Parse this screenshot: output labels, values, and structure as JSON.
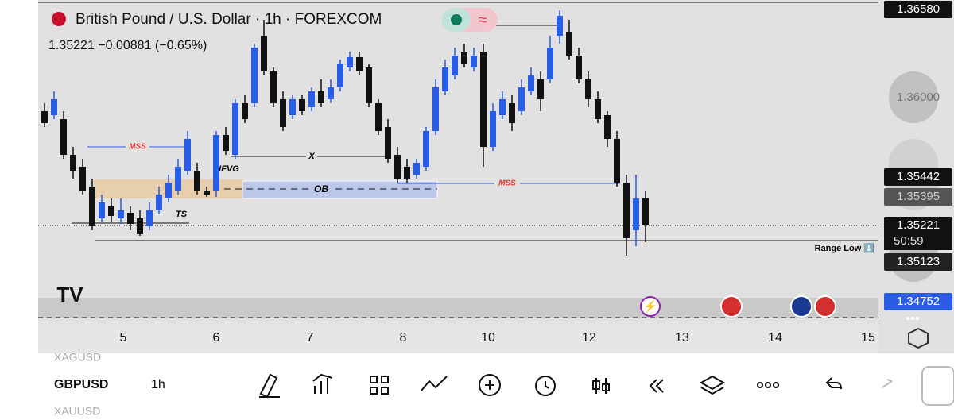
{
  "header": {
    "title": "British Pound / U.S. Dollar · 1h · FOREXCOM",
    "quote": "1.35221 −0.00881 (−0.65%)"
  },
  "chart_data": {
    "type": "candlestick",
    "ylim": [
      1.346,
      1.3664
    ],
    "up_color": "#2b5ce6",
    "down_color": "#111111",
    "xticks": [
      {
        "value": 8.25,
        "label": "5"
      },
      {
        "value": 18,
        "label": "6"
      },
      {
        "value": 27.83,
        "label": "7"
      },
      {
        "value": 37.58,
        "label": "8"
      },
      {
        "value": 46.5,
        "label": "10"
      },
      {
        "value": 57.08,
        "label": "12"
      },
      {
        "value": 66.83,
        "label": "13"
      },
      {
        "value": 76.58,
        "label": "14"
      },
      {
        "value": 86.33,
        "label": "15"
      }
    ],
    "candles": [
      [
        1.3594,
        1.3599,
        1.3584,
        1.35865
      ],
      [
        1.35915,
        1.36065,
        1.3589,
        1.36015
      ],
      [
        1.3589,
        1.3594,
        1.3564,
        1.35665
      ],
      [
        1.35665,
        1.35715,
        1.35515,
        1.35565
      ],
      [
        1.3559,
        1.3564,
        1.35415,
        1.3544
      ],
      [
        1.35465,
        1.35515,
        1.3519,
        1.35215
      ],
      [
        1.35265,
        1.35415,
        1.3524,
        1.35365
      ],
      [
        1.3534,
        1.3539,
        1.3524,
        1.3528
      ],
      [
        1.35265,
        1.3539,
        1.3523,
        1.35315
      ],
      [
        1.353,
        1.3534,
        1.3519,
        1.3523
      ],
      [
        1.35265,
        1.35315,
        1.35155,
        1.35165
      ],
      [
        1.35215,
        1.35365,
        1.3519,
        1.35315
      ],
      [
        1.35315,
        1.35465,
        1.3529,
        1.35415
      ],
      [
        1.3539,
        1.3554,
        1.35365,
        1.3549
      ],
      [
        1.3544,
        1.3564,
        1.35415,
        1.3559
      ],
      [
        1.35565,
        1.35815,
        1.3554,
        1.35765
      ],
      [
        1.35565,
        1.35615,
        1.35415,
        1.3544
      ],
      [
        1.3544,
        1.35465,
        1.354,
        1.35415
      ],
      [
        1.3544,
        1.35815,
        1.354,
        1.3579
      ],
      [
        1.3579,
        1.3584,
        1.35665,
        1.3569
      ],
      [
        1.35665,
        1.36015,
        1.3564,
        1.3599
      ],
      [
        1.3599,
        1.3604,
        1.35865,
        1.3589
      ],
      [
        1.3599,
        1.36365,
        1.35965,
        1.3634
      ],
      [
        1.36415,
        1.36515,
        1.36165,
        1.3619
      ],
      [
        1.3619,
        1.36215,
        1.35965,
        1.3599
      ],
      [
        1.36015,
        1.36065,
        1.35815,
        1.3584
      ],
      [
        1.35915,
        1.3604,
        1.3589,
        1.36015
      ],
      [
        1.36015,
        1.3604,
        1.35915,
        1.3594
      ],
      [
        1.35965,
        1.3609,
        1.3594,
        1.36065
      ],
      [
        1.36065,
        1.3614,
        1.35965,
        1.3599
      ],
      [
        1.36015,
        1.3614,
        1.3599,
        1.3609
      ],
      [
        1.3609,
        1.36265,
        1.36065,
        1.3624
      ],
      [
        1.36215,
        1.36315,
        1.3619,
        1.3628
      ],
      [
        1.3628,
        1.36315,
        1.36165,
        1.3619
      ],
      [
        1.36215,
        1.3624,
        1.35965,
        1.3599
      ],
      [
        1.3599,
        1.36015,
        1.3579,
        1.35815
      ],
      [
        1.3584,
        1.3589,
        1.35615,
        1.3564
      ],
      [
        1.35665,
        1.35715,
        1.3549,
        1.35515
      ],
      [
        1.3559,
        1.3564,
        1.3549,
        1.35515
      ],
      [
        1.3554,
        1.3564,
        1.35515,
        1.35615
      ],
      [
        1.3559,
        1.3584,
        1.35565,
        1.35815
      ],
      [
        1.35815,
        1.3614,
        1.3579,
        1.3609
      ],
      [
        1.36065,
        1.36265,
        1.3604,
        1.36215
      ],
      [
        1.36165,
        1.3634,
        1.3614,
        1.3629
      ],
      [
        1.36315,
        1.36365,
        1.36215,
        1.3624
      ],
      [
        1.36215,
        1.3634,
        1.3619,
        1.3629
      ],
      [
        1.36315,
        1.36365,
        1.3559,
        1.35715
      ],
      [
        1.35715,
        1.3599,
        1.3569,
        1.3594
      ],
      [
        1.35915,
        1.36065,
        1.3589,
        1.36015
      ],
      [
        1.3599,
        1.3604,
        1.35815,
        1.35865
      ],
      [
        1.3594,
        1.3614,
        1.35915,
        1.3609
      ],
      [
        1.36065,
        1.36215,
        1.3604,
        1.36165
      ],
      [
        1.3614,
        1.3619,
        1.3594,
        1.36015
      ],
      [
        1.3614,
        1.36415,
        1.36115,
        1.3634
      ],
      [
        1.36415,
        1.36575,
        1.36365,
        1.3654
      ],
      [
        1.3644,
        1.36515,
        1.36265,
        1.3629
      ],
      [
        1.3629,
        1.3634,
        1.36115,
        1.3614
      ],
      [
        1.3614,
        1.3619,
        1.35965,
        1.36015
      ],
      [
        1.36015,
        1.36065,
        1.35865,
        1.3589
      ],
      [
        1.35915,
        1.3594,
        1.35715,
        1.35765
      ],
      [
        1.35765,
        1.35815,
        1.35465,
        1.3549
      ],
      [
        1.3549,
        1.3554,
        1.3503,
        1.3514
      ],
      [
        1.3519,
        1.3554,
        1.3509,
        1.3539
      ],
      [
        1.3539,
        1.3544,
        1.35115,
        1.35221
      ]
    ],
    "price_labels": [
      {
        "value": 1.3658,
        "label": "1.36580"
      },
      {
        "value": 1.36,
        "label": "1.36000"
      },
      {
        "value": 1.35442,
        "label": "1.35442"
      },
      {
        "value": 1.35395,
        "label": "1.35395"
      },
      {
        "value": 1.35221,
        "label": "1.35221"
      },
      {
        "value": 1.35123,
        "label": "1.35123"
      },
      {
        "value": 1.34752,
        "label": "1.34752"
      }
    ],
    "countdown": "50:59",
    "annotations": [
      "MSS",
      "TS",
      "IFVG",
      "X",
      "OB",
      "MSS",
      "Range Low ⬇️"
    ]
  },
  "toolbar": {
    "symbol_prev": "XAGUSD",
    "symbol": "GBPUSD",
    "interval": "1h",
    "symbol_next": "XAUUSD"
  }
}
